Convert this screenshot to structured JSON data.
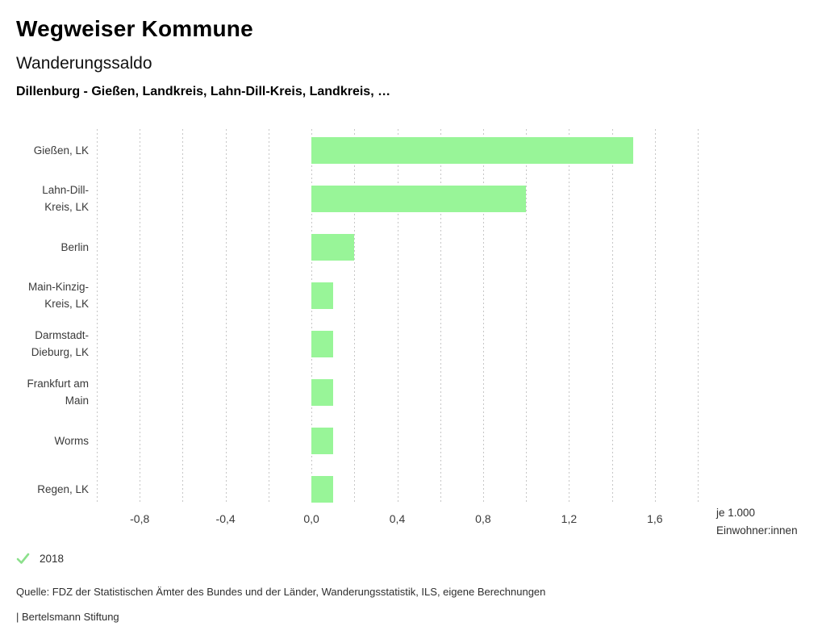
{
  "header": {
    "app_title": "Wegweiser Kommune",
    "chart_title": "Wanderungssaldo",
    "comparison": "Dillenburg - Gießen, Landkreis, Lahn-Dill-Kreis, Landkreis, …"
  },
  "chart_data": {
    "type": "bar",
    "orientation": "horizontal",
    "title": "Wanderungssaldo",
    "categories": [
      "Gießen, LK",
      "Lahn-Dill-Kreis, LK",
      "Berlin",
      "Main-Kinzig-Kreis, LK",
      "Darmstadt-Dieburg, LK",
      "Frankfurt am Main",
      "Worms",
      "Regen, LK"
    ],
    "category_display_lines": [
      [
        "Gießen, LK"
      ],
      [
        "Lahn-Dill-",
        "Kreis, LK"
      ],
      [
        "Berlin"
      ],
      [
        "Main-Kinzig-",
        "Kreis, LK"
      ],
      [
        "Darmstadt-",
        "Dieburg, LK"
      ],
      [
        "Frankfurt am",
        "Main"
      ],
      [
        "Worms"
      ],
      [
        "Regen, LK"
      ]
    ],
    "series": [
      {
        "name": "2018",
        "values": [
          1.5,
          1.0,
          0.2,
          0.1,
          0.1,
          0.1,
          0.1,
          0.1
        ]
      }
    ],
    "xlim": [
      -1.0,
      1.8
    ],
    "gridline_step": 0.2,
    "x_ticks": [
      {
        "value": -0.8,
        "label": "-0,8"
      },
      {
        "value": -0.4,
        "label": "-0,4"
      },
      {
        "value": 0.0,
        "label": "0,0"
      },
      {
        "value": 0.4,
        "label": "0,4"
      },
      {
        "value": 0.8,
        "label": "0,8"
      },
      {
        "value": 1.2,
        "label": "1,2"
      },
      {
        "value": 1.6,
        "label": "1,6"
      }
    ],
    "unit_label_lines": [
      "je 1.000",
      "Einwohner:innen"
    ],
    "grid": "dotted-vertical",
    "legend_position": "bottom-left",
    "bar_color": "#98f598",
    "gridline_color": "#c6c6c6"
  },
  "legend": {
    "year_label": "2018",
    "check_icon_color": "#8ce08c"
  },
  "footer": {
    "source": "Quelle: FDZ der Statistischen Ämter des Bundes und der Länder, Wanderungsstatistik, ILS, eigene Berechnungen",
    "brand": "| Bertelsmann Stiftung"
  }
}
